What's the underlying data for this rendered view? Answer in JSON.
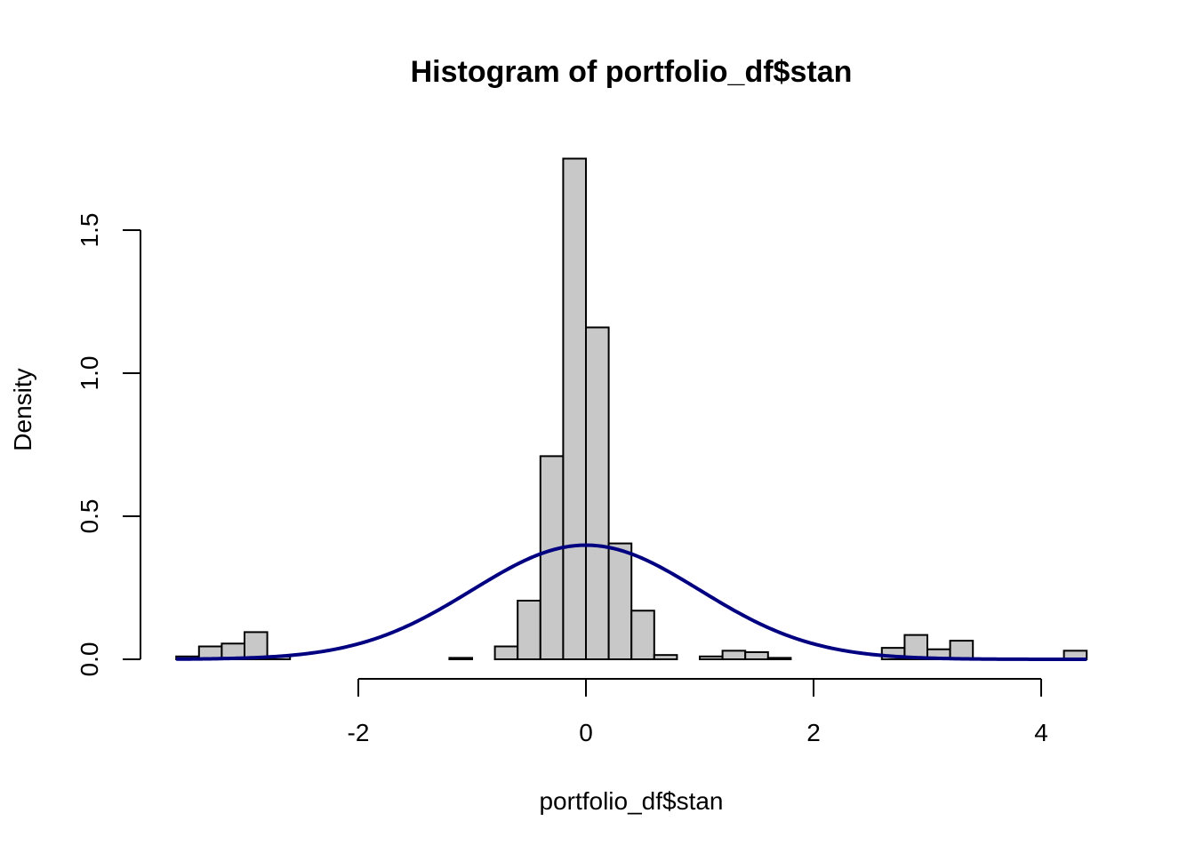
{
  "chart_data": {
    "type": "bar",
    "title": "Histogram of portfolio_df$stan",
    "xlabel": "portfolio_df$stan",
    "ylabel": "Density",
    "xlim": [
      -3.6,
      4.4
    ],
    "ylim": [
      0,
      1.75
    ],
    "x_ticks": [
      -2,
      0,
      2,
      4
    ],
    "y_ticks": [
      0.0,
      0.5,
      1.0,
      1.5
    ],
    "x_tick_labels": [
      "-2",
      "0",
      "2",
      "4"
    ],
    "y_tick_labels": [
      "0.0",
      "0.5",
      "1.0",
      "1.5"
    ],
    "bin_width": 0.2,
    "bins": [
      {
        "start": -3.6,
        "density": 0.01
      },
      {
        "start": -3.4,
        "density": 0.045
      },
      {
        "start": -3.2,
        "density": 0.055
      },
      {
        "start": -3.0,
        "density": 0.095
      },
      {
        "start": -2.8,
        "density": 0.01
      },
      {
        "start": -2.6,
        "density": 0.0
      },
      {
        "start": -2.4,
        "density": 0.0
      },
      {
        "start": -2.2,
        "density": 0.0
      },
      {
        "start": -2.0,
        "density": 0.0
      },
      {
        "start": -1.8,
        "density": 0.0
      },
      {
        "start": -1.6,
        "density": 0.0
      },
      {
        "start": -1.4,
        "density": 0.0
      },
      {
        "start": -1.2,
        "density": 0.005
      },
      {
        "start": -1.0,
        "density": 0.0
      },
      {
        "start": -0.8,
        "density": 0.045
      },
      {
        "start": -0.6,
        "density": 0.205
      },
      {
        "start": -0.4,
        "density": 0.71
      },
      {
        "start": -0.2,
        "density": 1.75
      },
      {
        "start": 0.0,
        "density": 1.16
      },
      {
        "start": 0.2,
        "density": 0.405
      },
      {
        "start": 0.4,
        "density": 0.17
      },
      {
        "start": 0.6,
        "density": 0.015
      },
      {
        "start": 0.8,
        "density": 0.0
      },
      {
        "start": 1.0,
        "density": 0.01
      },
      {
        "start": 1.2,
        "density": 0.03
      },
      {
        "start": 1.4,
        "density": 0.025
      },
      {
        "start": 1.6,
        "density": 0.005
      },
      {
        "start": 1.8,
        "density": 0.0
      },
      {
        "start": 2.0,
        "density": 0.0
      },
      {
        "start": 2.2,
        "density": 0.0
      },
      {
        "start": 2.4,
        "density": 0.0
      },
      {
        "start": 2.6,
        "density": 0.04
      },
      {
        "start": 2.8,
        "density": 0.085
      },
      {
        "start": 3.0,
        "density": 0.035
      },
      {
        "start": 3.2,
        "density": 0.065
      },
      {
        "start": 3.4,
        "density": 0.0
      },
      {
        "start": 3.6,
        "density": 0.0
      },
      {
        "start": 3.8,
        "density": 0.0
      },
      {
        "start": 4.0,
        "density": 0.0
      },
      {
        "start": 4.2,
        "density": 0.03
      }
    ],
    "overlay_curve": {
      "type": "normal_density",
      "mean": 0,
      "sd": 1,
      "x_range": [
        -3.6,
        4.4
      ]
    },
    "colors": {
      "bar_fill": "#c8c8c8",
      "bar_stroke": "#000000",
      "curve": "#000080"
    }
  }
}
